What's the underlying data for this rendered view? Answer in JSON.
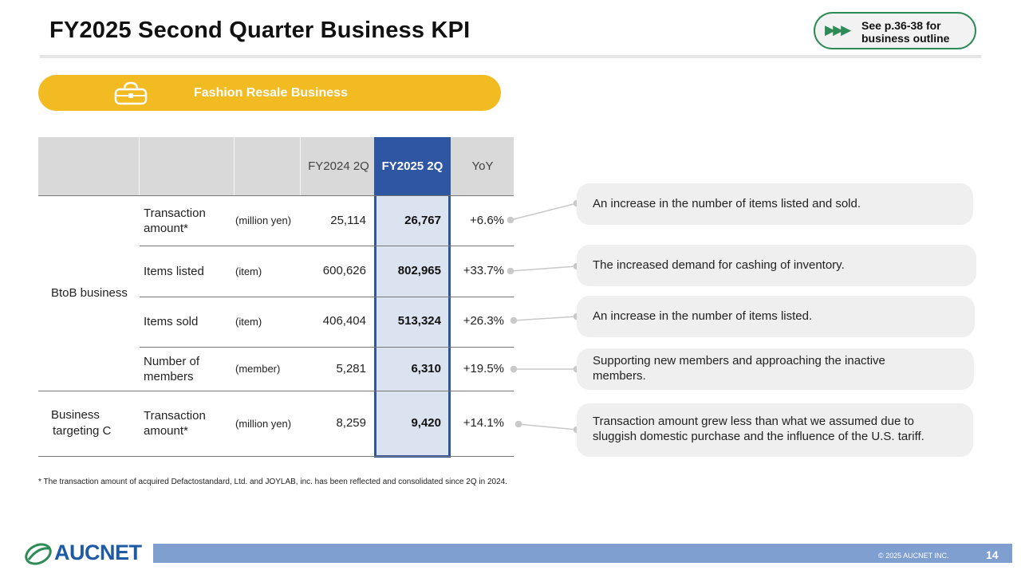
{
  "header": {
    "title": "FY2025 Second Quarter Business KPI",
    "ref_line1": "See p.36-38 for",
    "ref_line2": "business outline",
    "ref_arrows": "▶▶▶"
  },
  "banner": {
    "label": "Fashion Resale Business",
    "icon": "handbag-icon",
    "color": "#f2bb22"
  },
  "table": {
    "columns": [
      "FY2024 2Q",
      "FY2025 2Q",
      "YoY"
    ],
    "segments": [
      "BtoB business",
      "Business",
      "targeting C"
    ],
    "rows": [
      {
        "metric1": "Transaction",
        "metric2": "amount*",
        "unit": "(million yen)",
        "fy2024": "25,114",
        "fy2025": "26,767",
        "yoy": "+6.6%"
      },
      {
        "metric1": "Items listed",
        "metric2": "",
        "unit": "(item)",
        "fy2024": "600,626",
        "fy2025": "802,965",
        "yoy": "+33.7%"
      },
      {
        "metric1": "Items sold",
        "metric2": "",
        "unit": "(item)",
        "fy2024": "406,404",
        "fy2025": "513,324",
        "yoy": "+26.3%"
      },
      {
        "metric1": "Number of",
        "metric2": "members",
        "unit": "(member)",
        "fy2024": "5,281",
        "fy2025": "6,310",
        "yoy": "+19.5%"
      },
      {
        "metric1": "Transaction",
        "metric2": "amount*",
        "unit": "(million yen)",
        "fy2024": "8,259",
        "fy2025": "9,420",
        "yoy": "+14.1%"
      }
    ]
  },
  "notes": [
    {
      "line1": "An increase in the number of items listed and sold.",
      "line2": ""
    },
    {
      "line1": "The increased demand for cashing of inventory.",
      "line2": ""
    },
    {
      "line1": "An increase in the number of items listed.",
      "line2": ""
    },
    {
      "line1": "Supporting new members and approaching the inactive",
      "line2": "members."
    },
    {
      "line1": "Transaction amount grew less than what we assumed due to",
      "line2": "sluggish domestic purchase and the influence of the U.S. tariff."
    }
  ],
  "footnote": "* The transaction amount of acquired Defactostandard, Ltd. and JOYLAB, inc. has been reflected and consolidated since 2Q in 2024.",
  "footer": {
    "logo": "AUCNET",
    "copyright": "© 2025 AUCNET INC.",
    "page": "14"
  },
  "colors": {
    "accent_blue": "#2f56a3",
    "highlight_fill": "#dce3f0",
    "badge_green": "#2e8b57",
    "footer_bar": "#7f9fd1"
  }
}
